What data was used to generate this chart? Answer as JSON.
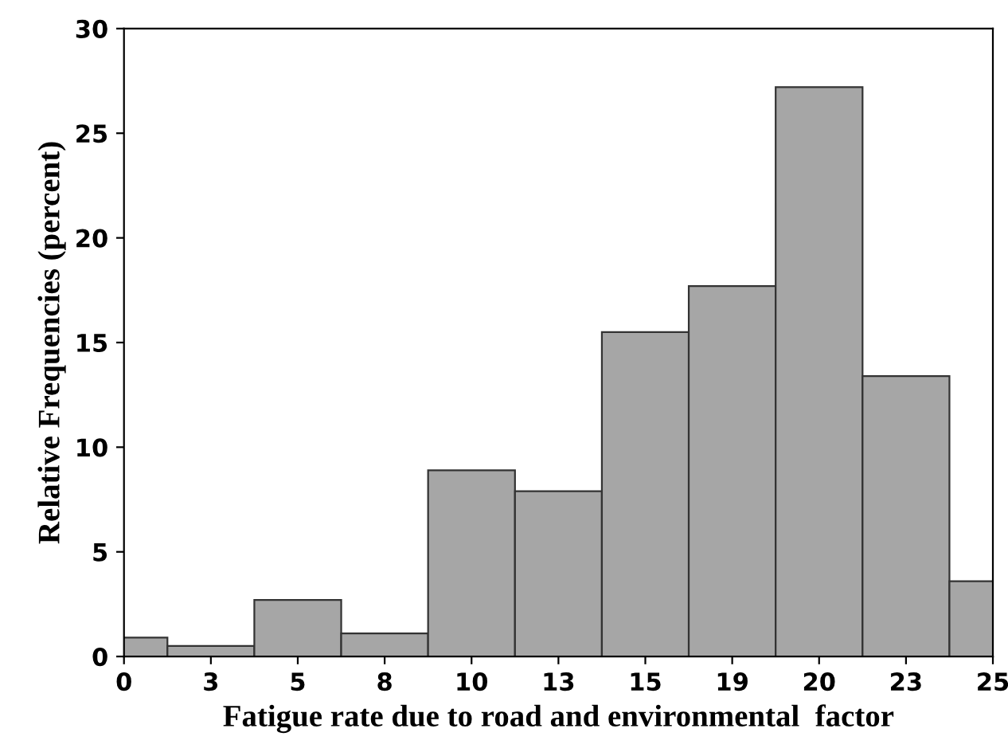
{
  "chart_data": {
    "type": "bar",
    "xlabel": "Fatigue rate due to road and environmental  factor",
    "ylabel": "Relative Frequencies (percent)",
    "categories": [
      "0",
      "3",
      "5",
      "8",
      "10",
      "13",
      "15",
      "19",
      "20",
      "23",
      "25"
    ],
    "values": [
      0.9,
      0.5,
      2.7,
      1.1,
      8.9,
      7.9,
      15.5,
      17.7,
      27.2,
      13.4,
      3.6
    ],
    "color": "#a6a6a6",
    "ylim": [
      0,
      30
    ],
    "yticks": [
      0,
      5,
      10,
      15,
      20,
      25,
      30
    ],
    "grid": false
  }
}
